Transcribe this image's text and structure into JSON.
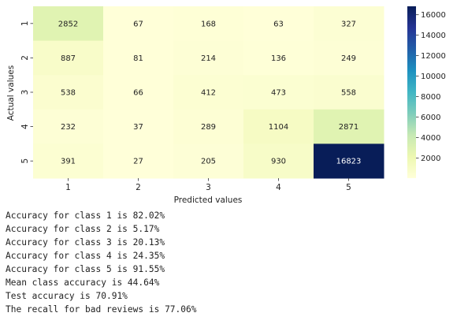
{
  "chart_data": {
    "type": "heatmap",
    "title": "",
    "xlabel": "Predicted values",
    "ylabel": "Actual values",
    "x_categories": [
      "1",
      "2",
      "3",
      "4",
      "5"
    ],
    "y_categories": [
      "1",
      "2",
      "3",
      "4",
      "5"
    ],
    "values": [
      [
        2852,
        67,
        168,
        63,
        327
      ],
      [
        887,
        81,
        214,
        136,
        249
      ],
      [
        538,
        66,
        412,
        473,
        558
      ],
      [
        232,
        37,
        289,
        1104,
        2871
      ],
      [
        391,
        27,
        205,
        930,
        16823
      ]
    ],
    "colorbar": {
      "colormap": "YlGnBu",
      "range": [
        27,
        16823
      ],
      "ticks": [
        2000,
        4000,
        6000,
        8000,
        10000,
        12000,
        14000,
        16000
      ]
    },
    "annotated": true
  },
  "output_lines": [
    "Accuracy for class 1 is 82.02%",
    "Accuracy for class 2 is 5.17%",
    "Accuracy for class 3 is 20.13%",
    "Accuracy for class 4 is 24.35%",
    "Accuracy for class 5 is 91.55%",
    "Mean class accuracy is 44.64%",
    "Test accuracy is 70.91%",
    "The recall for bad reviews is 77.06%"
  ]
}
